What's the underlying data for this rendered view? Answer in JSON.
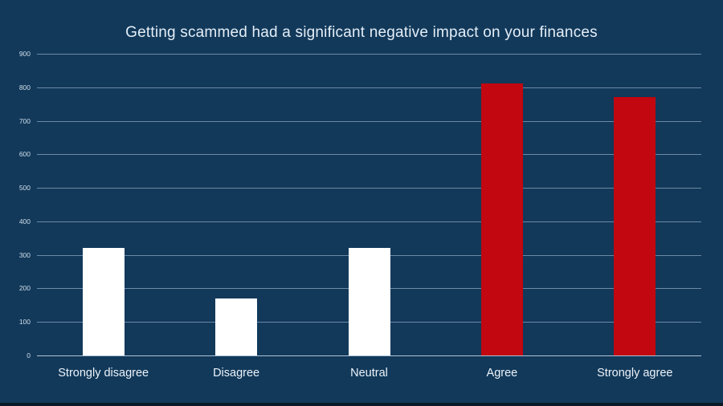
{
  "chart_data": {
    "type": "bar",
    "title": "Getting scammed had a significant negative impact on your finances",
    "categories": [
      "Strongly disagree",
      "Disagree",
      "Neutral",
      "Agree",
      "Strongly agree"
    ],
    "values": [
      320,
      170,
      320,
      812,
      770
    ],
    "bar_colors": [
      "#ffffff",
      "#ffffff",
      "#ffffff",
      "#c20710",
      "#c20710"
    ],
    "xlabel": "",
    "ylabel": "",
    "ylim": [
      0,
      900
    ],
    "ytick_step": 100,
    "ytick_labels": [
      "0",
      "100",
      "200",
      "300",
      "400",
      "500",
      "600",
      "700",
      "800",
      "900"
    ],
    "grid": true,
    "legend_position": "none"
  },
  "colors": {
    "background": "#12395a",
    "gridline": "#8aa5bc",
    "zero_axis_line": "#b6cbdd",
    "title_text": "#e4eef7",
    "tick_text": "#d2dfec",
    "category_text": "#ecf3fa",
    "bottom_strip": "#0a1927"
  }
}
